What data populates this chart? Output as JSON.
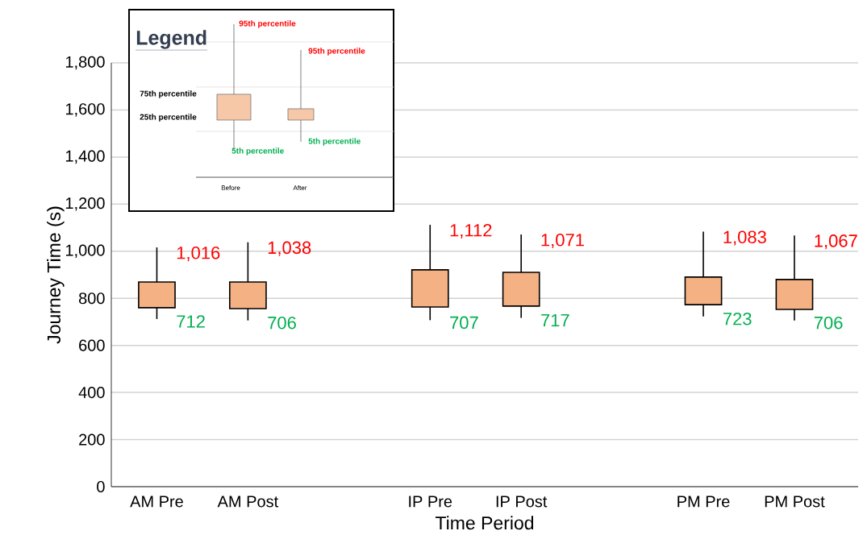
{
  "chart_data": {
    "type": "candlestick",
    "xlabel": "Time Period",
    "ylabel": "Journey Time (s)",
    "legend_title": "Legend",
    "categories": [
      "AM Pre",
      "AM Post",
      null,
      "IP Pre",
      "IP Post",
      null,
      "PM Pre",
      "PM Post"
    ],
    "ohlc": [
      [
        760,
        1016,
        712,
        869
      ],
      [
        756,
        1038,
        706,
        869
      ],
      null,
      [
        763,
        1112,
        707,
        921
      ],
      [
        767,
        1071,
        717,
        910
      ],
      null,
      [
        773,
        1083,
        723,
        890
      ],
      [
        753,
        1067,
        706,
        880
      ]
    ],
    "color": "#f4b183",
    "ylim": [
      0,
      1800
    ],
    "yticks": [
      0,
      200,
      400,
      600,
      800,
      {
        "value": 1000,
        "label": "1,000"
      },
      {
        "value": 1200,
        "label": "1,200"
      },
      {
        "value": 1400,
        "label": "1,400"
      },
      {
        "value": 1600,
        "label": "1,600"
      },
      {
        "value": 1800,
        "label": "1,800"
      }
    ],
    "grid": "y",
    "annotations": [
      {
        "text": "1,016",
        "x": "AM Pre",
        "y": 1016
      },
      {
        "text": "712",
        "x": "AM Pre",
        "y": 712
      },
      {
        "text": "1,038",
        "x": "AM Post",
        "y": 1038
      },
      {
        "text": "706",
        "x": "AM Post",
        "y": 706
      },
      {
        "text": "1,112",
        "x": "IP Pre",
        "y": 1112
      },
      {
        "text": "707",
        "x": "IP Pre",
        "y": 707
      },
      {
        "text": "1,071",
        "x": "IP Post",
        "y": 1071
      },
      {
        "text": "717",
        "x": "IP Post",
        "y": 717
      },
      {
        "text": "1,083",
        "x": "PM Pre",
        "y": 1083
      },
      {
        "text": "723",
        "x": "PM Pre",
        "y": 723
      },
      {
        "text": "1,067",
        "x": "PM Post",
        "y": 1067
      },
      {
        "text": "706",
        "x": "PM Post",
        "y": 706
      },
      "95th percentile",
      "95th percentile",
      "75th percentile",
      "25th percentile",
      "5th percentile",
      "5th percentile",
      "Before",
      "After"
    ]
  }
}
